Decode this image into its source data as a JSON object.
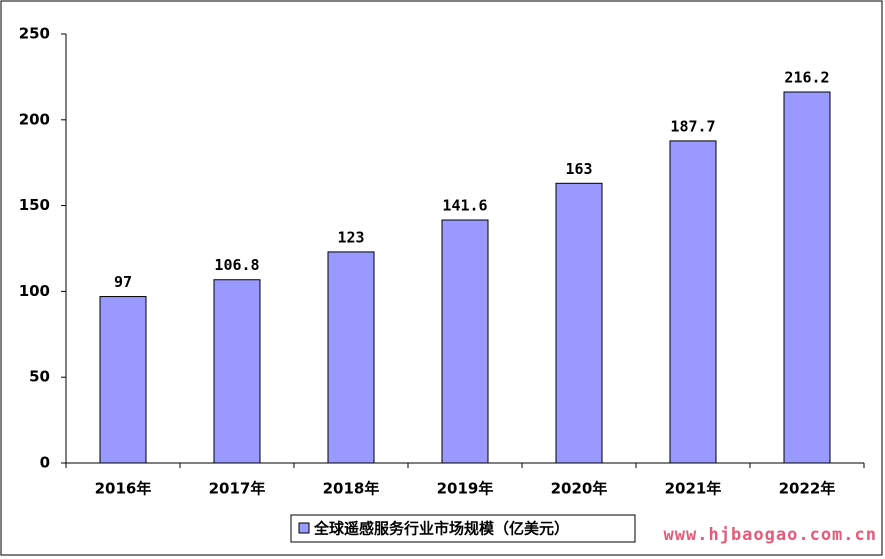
{
  "chart_data": {
    "type": "bar",
    "categories": [
      "2016年",
      "2017年",
      "2018年",
      "2019年",
      "2020年",
      "2021年",
      "2022年"
    ],
    "series": [
      {
        "name": "全球遥感服务行业市场规模（亿美元）",
        "color": "#9999ff",
        "values": [
          97,
          106.8,
          123,
          141.6,
          163,
          187.7,
          216.2
        ]
      }
    ],
    "ylim": [
      0,
      250
    ],
    "yticks": [
      0,
      50,
      100,
      150,
      200,
      250
    ],
    "grid": false,
    "legend": "bottom",
    "watermark": "www.hjbaogao.com.cn"
  }
}
